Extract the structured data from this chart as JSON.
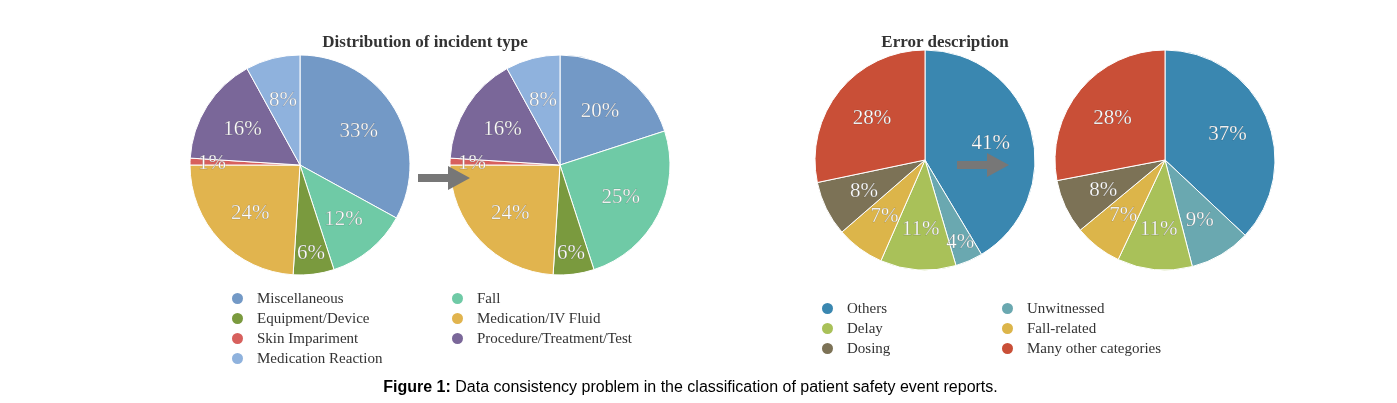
{
  "chart_data": [
    {
      "type": "pie",
      "title": "Distribution of incident type",
      "categories": [
        "Miscellaneous",
        "Fall",
        "Equipment/Device",
        "Medication/IV Fluid",
        "Skin Impariment",
        "Procedure/Treatment/Test",
        "Medication Reaction"
      ],
      "colors": [
        "#7399c6",
        "#6fcaa6",
        "#7a9a3e",
        "#e1b44e",
        "#d7605d",
        "#7a6799",
        "#8fb2dd"
      ],
      "legend": "bottom",
      "series": [
        {
          "values": [
            33,
            12,
            6,
            24,
            1,
            16,
            8
          ],
          "value_labels": [
            "33%",
            "12%",
            "6%",
            "24%",
            "1%",
            "16%",
            "8%"
          ]
        },
        {
          "values": [
            20,
            25,
            6,
            24,
            1,
            16,
            8
          ],
          "value_labels": [
            "20%",
            "25%",
            "6%",
            "24%",
            "1%",
            "16%",
            "8%"
          ]
        }
      ],
      "annotations": [
        "Figure 1: Data consistency problem in the classification of patient safety event reports."
      ]
    },
    {
      "type": "pie",
      "title": "Error description",
      "categories": [
        "Others",
        "Unwitnessed",
        "Delay",
        "Fall-related",
        "Dosing",
        "Many other categories"
      ],
      "colors": [
        "#3a87b0",
        "#6aa8b0",
        "#a9c159",
        "#dcb54a",
        "#7c7256",
        "#c94f37"
      ],
      "legend": "bottom",
      "series": [
        {
          "values": [
            41,
            4,
            11,
            7,
            8,
            28
          ],
          "value_labels": [
            "41%",
            "4%",
            "11%",
            "7%",
            "8%",
            "28%"
          ]
        },
        {
          "values": [
            37,
            9,
            11,
            7,
            8,
            28
          ],
          "value_labels": [
            "37%",
            "9%",
            "11%",
            "7%",
            "8%",
            "28%"
          ]
        }
      ]
    }
  ]
}
